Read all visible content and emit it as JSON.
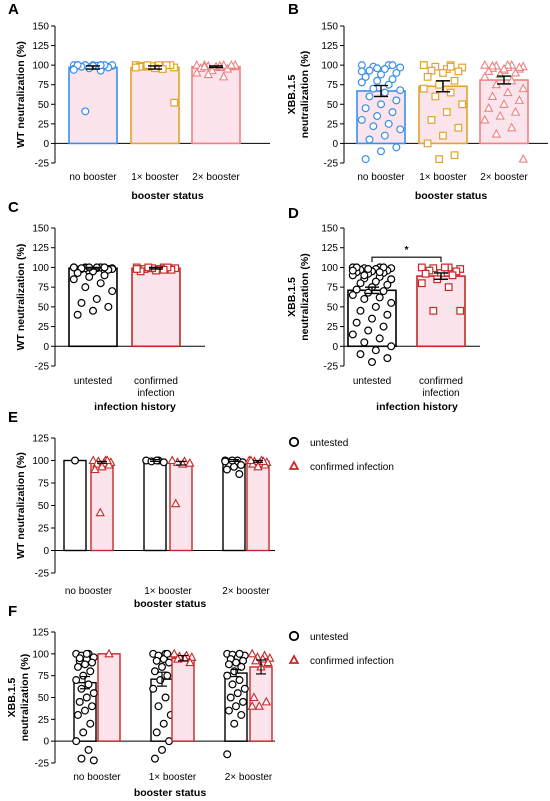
{
  "colors": {
    "no_booster": "#3a8fe8",
    "one_booster": "#e0a52a",
    "two_booster": "#f08080",
    "untested": "#000000",
    "confirmed": "#c62828",
    "pink_fill": "#fce4ec"
  },
  "chart_data": [
    {
      "panel": "A",
      "type": "bar",
      "ylabel": "WT neutralization (%)",
      "xlabel": "booster status",
      "ylim": [
        -25,
        150
      ],
      "yticks": [
        -25,
        0,
        25,
        50,
        75,
        100,
        125,
        150
      ],
      "categories": [
        "no booster",
        "1× booster",
        "2× booster"
      ],
      "series": [
        {
          "markers": [
            "circle",
            "square",
            "triangle"
          ],
          "colors": [
            "#3a8fe8",
            "#e0a52a",
            "#f08080"
          ],
          "values": [
            97,
            97,
            98
          ],
          "errors": [
            2,
            2,
            1
          ],
          "points": [
            [
              100,
              100,
              100,
              99,
              99,
              98,
              98,
              100,
              100,
              99,
              97,
              95,
              93,
              100,
              100,
              99,
              98,
              97,
              99,
              100,
              100,
              96,
              94,
              100,
              41
            ],
            [
              100,
              99,
              98,
              97,
              100,
              99,
              100,
              96,
              98,
              100,
              99,
              97,
              95,
              100,
              52
            ],
            [
              100,
              100,
              99,
              98,
              97,
              100,
              99,
              98,
              96,
              95,
              93,
              90,
              85,
              88,
              100,
              99,
              98,
              100
            ]
          ]
        }
      ]
    },
    {
      "panel": "B",
      "type": "bar",
      "ylabel": "XBB.1.5 neutralization (%)",
      "xlabel": "booster status",
      "ylim": [
        -25,
        150
      ],
      "yticks": [
        -25,
        0,
        25,
        50,
        75,
        100,
        125,
        150
      ],
      "categories": [
        "no booster",
        "1× booster",
        "2× booster"
      ],
      "series": [
        {
          "markers": [
            "circle",
            "square",
            "triangle"
          ],
          "colors": [
            "#3a8fe8",
            "#e0a52a",
            "#f08080"
          ],
          "values": [
            67,
            73,
            81
          ],
          "errors": [
            7,
            7,
            5
          ],
          "points": [
            [
              100,
              100,
              98,
              97,
              95,
              93,
              90,
              88,
              85,
              82,
              80,
              78,
              75,
              70,
              68,
              65,
              60,
              55,
              50,
              45,
              40,
              35,
              30,
              25,
              22,
              18,
              10,
              5,
              -5,
              -10,
              -20,
              100,
              96,
              92
            ],
            [
              100,
              100,
              98,
              97,
              95,
              93,
              92,
              90,
              85,
              80,
              75,
              70,
              65,
              60,
              50,
              40,
              30,
              20,
              10,
              0,
              -15,
              -20,
              100,
              98
            ],
            [
              100,
              100,
              99,
              98,
              97,
              96,
              95,
              93,
              92,
              90,
              88,
              85,
              80,
              75,
              70,
              65,
              60,
              55,
              50,
              45,
              40,
              35,
              30,
              20,
              12,
              -20,
              100,
              99,
              97,
              95
            ]
          ]
        }
      ]
    },
    {
      "panel": "C",
      "type": "bar",
      "ylabel": "WT neutralization (%)",
      "xlabel": "infection history",
      "ylim": [
        -25,
        150
      ],
      "yticks": [
        -25,
        0,
        25,
        50,
        75,
        100,
        125,
        150
      ],
      "categories": [
        "untested",
        "confirmed infection"
      ],
      "series": [
        {
          "markers": [
            "circle",
            "square"
          ],
          "colors": [
            "#000000",
            "#c62828"
          ],
          "values": [
            99,
            99
          ],
          "errors": [
            1,
            1
          ],
          "points": [
            [
              100,
              100,
              100,
              99,
              99,
              98,
              98,
              97,
              97,
              96,
              95,
              100,
              100,
              99,
              98,
              100,
              99,
              97,
              95,
              93,
              90,
              88,
              85,
              80,
              75,
              70,
              60,
              55,
              50,
              45,
              40,
              100,
              100
            ],
            [
              100,
              100,
              99,
              99,
              98,
              98,
              97,
              96,
              95,
              100,
              99,
              98,
              97,
              100
            ]
          ]
        }
      ]
    },
    {
      "panel": "D",
      "type": "bar",
      "ylabel": "XBB.1.5 neutralization (%)",
      "xlabel": "infection history",
      "ylim": [
        -25,
        150
      ],
      "yticks": [
        -25,
        0,
        25,
        50,
        75,
        100,
        125,
        150
      ],
      "categories": [
        "untested",
        "confirmed infection"
      ],
      "annotation": "*",
      "series": [
        {
          "markers": [
            "circle",
            "square"
          ],
          "colors": [
            "#000000",
            "#c62828"
          ],
          "values": [
            71,
            89
          ],
          "errors": [
            4,
            4
          ],
          "points": [
            [
              100,
              100,
              99,
              99,
              98,
              97,
              96,
              95,
              94,
              93,
              92,
              90,
              88,
              86,
              85,
              82,
              80,
              78,
              75,
              72,
              70,
              68,
              65,
              62,
              60,
              55,
              50,
              45,
              40,
              35,
              30,
              25,
              20,
              15,
              10,
              5,
              0,
              -5,
              -10,
              -15,
              -20,
              100,
              100,
              98,
              96,
              94,
              90,
              85
            ],
            [
              100,
              100,
              99,
              98,
              97,
              96,
              95,
              93,
              92,
              90,
              85,
              80,
              75,
              45,
              45,
              100
            ]
          ]
        }
      ]
    },
    {
      "panel": "E",
      "type": "bar",
      "ylabel": "WT neutralization (%)",
      "xlabel": "booster status",
      "ylim": [
        -25,
        125
      ],
      "yticks": [
        -25,
        0,
        25,
        50,
        75,
        100,
        125
      ],
      "categories": [
        "no booster",
        "1× booster",
        "2× booster"
      ],
      "legend": {
        "position": "top-right"
      },
      "series": [
        {
          "name": "untested",
          "marker": "circle",
          "color": "#000000",
          "values": [
            100,
            100,
            100
          ],
          "errors": [
            0,
            1,
            1
          ],
          "points": [
            [
              100
            ],
            [
              100,
              100,
              99,
              98,
              100
            ],
            [
              100,
              100,
              99,
              98,
              97,
              96,
              95,
              93,
              90,
              85,
              100,
              99
            ]
          ]
        },
        {
          "name": "confirmed infection",
          "marker": "triangle",
          "color": "#c62828",
          "values": [
            98,
            97,
            99
          ],
          "errors": [
            1,
            2,
            1
          ],
          "points": [
            [
              100,
              100,
              99,
              98,
              97,
              96,
              95,
              93,
              90,
              100,
              42
            ],
            [
              100,
              99,
              98,
              97,
              96,
              52
            ],
            [
              100,
              100,
              99,
              98,
              97,
              96,
              95,
              93,
              100,
              99
            ]
          ]
        }
      ]
    },
    {
      "panel": "F",
      "type": "bar",
      "ylabel": "XBB.1.5 neutralization (%)",
      "xlabel": "booster status",
      "ylim": [
        -25,
        125
      ],
      "yticks": [
        -25,
        0,
        25,
        50,
        75,
        100,
        125
      ],
      "categories": [
        "no booster",
        "1× booster",
        "2× booster"
      ],
      "legend": {
        "position": "top-right"
      },
      "series": [
        {
          "name": "untested",
          "marker": "circle",
          "color": "#000000",
          "values": [
            67,
            71,
            78
          ],
          "errors": [
            7,
            8,
            4
          ],
          "points": [
            [
              100,
              100,
              98,
              96,
              94,
              92,
              90,
              88,
              85,
              80,
              75,
              70,
              65,
              60,
              55,
              50,
              45,
              40,
              35,
              30,
              20,
              10,
              0,
              -10,
              -20,
              -22,
              100,
              95
            ],
            [
              100,
              100,
              98,
              96,
              94,
              92,
              90,
              85,
              80,
              75,
              70,
              60,
              50,
              40,
              30,
              20,
              10,
              0,
              -10,
              -20,
              100
            ],
            [
              100,
              100,
              99,
              98,
              96,
              94,
              92,
              90,
              88,
              85,
              80,
              75,
              70,
              65,
              60,
              55,
              50,
              45,
              40,
              35,
              30,
              20,
              -15,
              100
            ]
          ]
        },
        {
          "name": "confirmed infection",
          "marker": "triangle",
          "color": "#c62828",
          "values": [
            100,
            95,
            85
          ],
          "errors": [
            0,
            3,
            8
          ],
          "points": [
            [
              100
            ],
            [
              100,
              98,
              97,
              96,
              95,
              94,
              90
            ],
            [
              100,
              98,
              96,
              95,
              94,
              92,
              90,
              85,
              50,
              45,
              40,
              40
            ]
          ]
        }
      ]
    }
  ]
}
